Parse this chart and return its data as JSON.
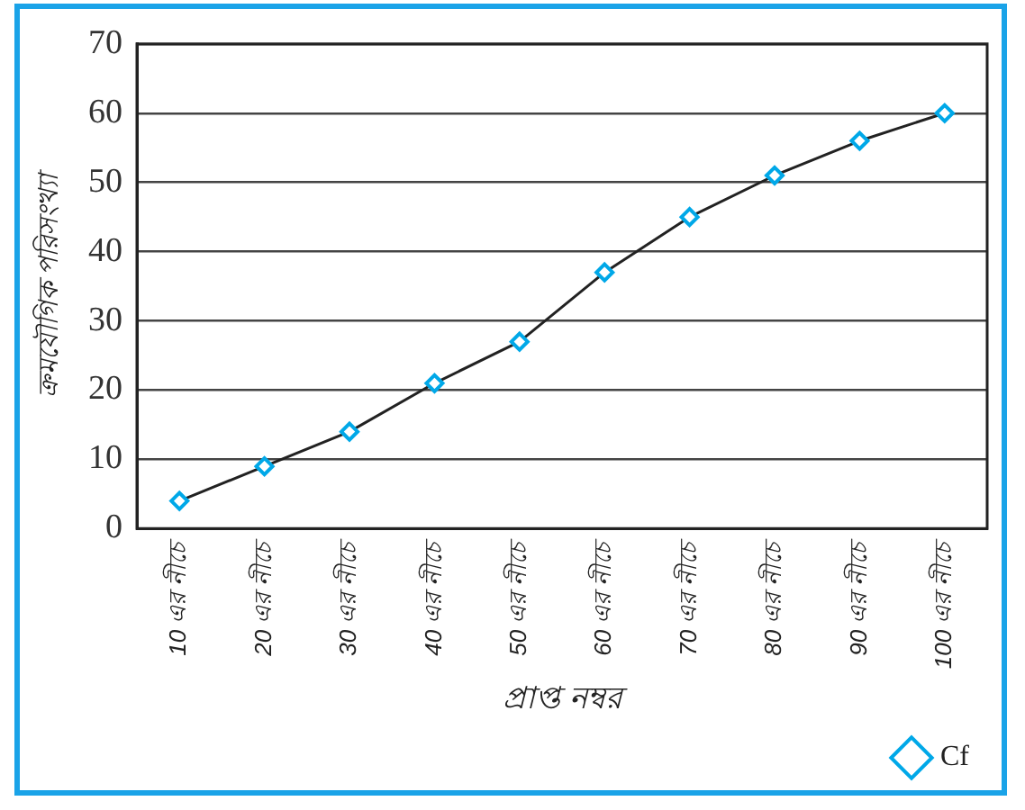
{
  "chart_data": {
    "type": "line",
    "xlabel": "প্রাপ্ত নম্বর",
    "ylabel": "ক্রমযৌগিক পরিসংখ্যা",
    "categories": [
      "10 এর নীচে",
      "20 এর নীচে",
      "30 এর নীচে",
      "40 এর নীচে",
      "50 এর নীচে",
      "60 এর নীচে",
      "70 এর নীচে",
      "80 এর নীচে",
      "90 এর নীচে",
      "100 এর নীচে"
    ],
    "series": [
      {
        "name": "Cf",
        "color": "#00a8e8",
        "values": [
          4,
          9,
          14,
          21,
          27,
          37,
          45,
          51,
          56,
          60
        ]
      }
    ],
    "ylim": [
      0,
      70
    ],
    "yticks": [
      0,
      10,
      20,
      30,
      40,
      50,
      60,
      70
    ],
    "grid": "y",
    "legend": "bottom right",
    "marker": "diamond",
    "line_style": "solid"
  }
}
